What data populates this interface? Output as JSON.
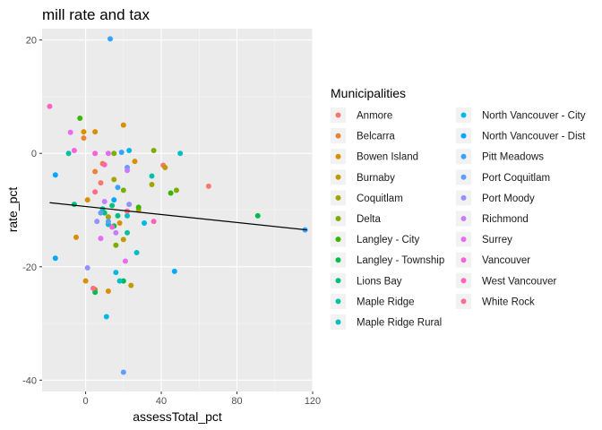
{
  "chart_data": {
    "type": "scatter",
    "title": "mill rate and tax",
    "xlabel": "assessTotal_pct",
    "ylabel": "rate_pct",
    "xlim": [
      -23,
      120
    ],
    "ylim": [
      -42,
      22
    ],
    "x_ticks": [
      0,
      40,
      80,
      120
    ],
    "y_ticks": [
      20,
      0,
      -20,
      -40
    ],
    "grid": true,
    "legend": {
      "title": "Municipalities",
      "placement": "right"
    },
    "trend_line": {
      "type": "linear",
      "color": "#000000",
      "points": [
        [
          -19,
          -8.7
        ],
        [
          117,
          -13.5
        ]
      ]
    },
    "series": [
      {
        "name": "Anmore",
        "color": "#F8766D",
        "points": [
          [
            65,
            -5.8
          ],
          [
            41,
            -2.1
          ],
          [
            8,
            -5.2
          ]
        ]
      },
      {
        "name": "Belcarra",
        "color": "#EB8335",
        "points": [
          [
            -1,
            2.7
          ],
          [
            9,
            -1.8
          ],
          [
            5,
            -3.2
          ]
        ]
      },
      {
        "name": "Bowen Island",
        "color": "#D89000",
        "points": [
          [
            -1,
            3.8
          ],
          [
            5,
            3.8
          ],
          [
            20,
            5.0
          ],
          [
            1,
            -8.2
          ],
          [
            18,
            -12.3
          ],
          [
            -5,
            -14.8
          ],
          [
            5,
            -24.0
          ],
          [
            0,
            -22.5
          ],
          [
            12,
            -24.3
          ],
          [
            26,
            -1.4
          ]
        ]
      },
      {
        "name": "Burnaby",
        "color": "#BF9C00",
        "points": [
          [
            24,
            -23.3
          ],
          [
            42,
            -2.5
          ],
          [
            20,
            -15.2
          ],
          [
            28,
            -10.0
          ]
        ]
      },
      {
        "name": "Coquitlam",
        "color": "#A3A500",
        "points": [
          [
            15,
            -4.6
          ],
          [
            35,
            -5.5
          ],
          [
            12,
            -11.2
          ]
        ]
      },
      {
        "name": "Delta",
        "color": "#7CAE00",
        "points": [
          [
            15,
            0.0
          ],
          [
            36,
            0.5
          ],
          [
            48,
            -6.5
          ],
          [
            20,
            -6.5
          ],
          [
            16,
            -16.2
          ]
        ]
      },
      {
        "name": "Langley - City",
        "color": "#39B600",
        "points": [
          [
            12,
            -12.5
          ],
          [
            45,
            -7.0
          ],
          [
            28,
            -9.5
          ],
          [
            -3,
            6.2
          ]
        ]
      },
      {
        "name": "Langley - Township",
        "color": "#00BB4E",
        "points": [
          [
            91,
            -11.0
          ],
          [
            20,
            -22.5
          ],
          [
            5,
            -24.5
          ],
          [
            15,
            -12.8
          ]
        ]
      },
      {
        "name": "Lions Bay",
        "color": "#00BF7D",
        "points": [
          [
            10,
            -10.5
          ],
          [
            17,
            -11.0
          ],
          [
            -6,
            -9.0
          ],
          [
            14,
            -9.2
          ]
        ]
      },
      {
        "name": "Maple Ridge",
        "color": "#00C1A3",
        "points": [
          [
            -9,
            0.0
          ],
          [
            35,
            -4.0
          ],
          [
            22,
            -14.0
          ],
          [
            9,
            -9.8
          ]
        ]
      },
      {
        "name": "Maple Ridge Rural",
        "color": "#00BFC4",
        "points": [
          [
            50,
            0.0
          ],
          [
            27,
            -17.5
          ],
          [
            18,
            -22.5
          ],
          [
            12,
            -12.5
          ],
          [
            22,
            -11.0
          ]
        ]
      },
      {
        "name": "North Vancouver - City",
        "color": "#00B8E7",
        "points": [
          [
            11,
            -28.8
          ],
          [
            16,
            -21.0
          ],
          [
            31,
            -12.3
          ],
          [
            23,
            0.5
          ]
        ]
      },
      {
        "name": "North Vancouver - Dist",
        "color": "#00A9FF",
        "points": [
          [
            -16,
            -18.5
          ],
          [
            -16,
            -3.8
          ],
          [
            47,
            -20.8
          ],
          [
            15,
            -8.2
          ]
        ]
      },
      {
        "name": "Pitt Meadows",
        "color": "#35A2FF",
        "points": [
          [
            116,
            -13.5
          ],
          [
            13,
            20.2
          ],
          [
            19,
            0.2
          ],
          [
            17,
            -6.0
          ]
        ]
      },
      {
        "name": "Port Coquitlam",
        "color": "#619CFF",
        "points": [
          [
            20,
            -38.6
          ],
          [
            22,
            -2.5
          ],
          [
            12,
            -12.0
          ],
          [
            8,
            -10.5
          ]
        ]
      },
      {
        "name": "Port Moody",
        "color": "#9590FF",
        "points": [
          [
            1,
            -20.2
          ],
          [
            23,
            -9.0
          ],
          [
            6,
            -12.0
          ]
        ]
      },
      {
        "name": "Richmond",
        "color": "#C77CFF",
        "points": [
          [
            22,
            -3.0
          ],
          [
            10,
            -8.5
          ],
          [
            16,
            -14.0
          ]
        ]
      },
      {
        "name": "Surrey",
        "color": "#E76BF3",
        "points": [
          [
            -8,
            3.7
          ],
          [
            12,
            0.0
          ],
          [
            21,
            -19.0
          ],
          [
            8,
            -15.0
          ]
        ]
      },
      {
        "name": "Vancouver",
        "color": "#FA62DB",
        "points": [
          [
            -6,
            0.5
          ],
          [
            5,
            0.0
          ],
          [
            14,
            -13.0
          ]
        ]
      },
      {
        "name": "West Vancouver",
        "color": "#FF62BC",
        "points": [
          [
            -19,
            8.3
          ],
          [
            36,
            -12.0
          ],
          [
            10,
            -2.0
          ]
        ]
      },
      {
        "name": "White Rock",
        "color": "#FF6C90",
        "points": [
          [
            5,
            -6.8
          ],
          [
            22,
            -10.2
          ],
          [
            4,
            -23.8
          ]
        ]
      }
    ]
  }
}
